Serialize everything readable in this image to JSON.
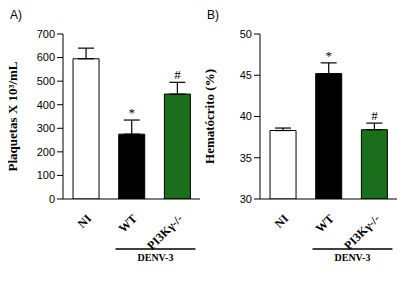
{
  "chart_data": [
    {
      "type": "bar",
      "title": "A)",
      "y_label": "Plaquetas X 10³/mL",
      "categories": [
        "NI",
        "WT",
        "PI3Kγ-/-"
      ],
      "values": [
        595,
        275,
        445
      ],
      "errors": [
        45,
        60,
        50
      ],
      "colors": [
        "#ffffff",
        "#000000",
        "#1b6e1b"
      ],
      "ylim": [
        0,
        700
      ],
      "yticks": [
        0,
        100,
        200,
        300,
        400,
        500,
        600,
        700
      ],
      "significance": [
        null,
        "*",
        "#"
      ],
      "annotations": [
        {
          "text": "DENV-3",
          "categories": [
            "WT",
            "PI3Kγ-/-"
          ]
        }
      ]
    },
    {
      "type": "bar",
      "title": "B)",
      "y_label": "Hematócrito (%)",
      "categories": [
        "NI",
        "WT",
        "PI3Kγ-/-"
      ],
      "values": [
        38.3,
        45.2,
        38.4
      ],
      "errors": [
        0.3,
        1.3,
        0.8
      ],
      "colors": [
        "#ffffff",
        "#000000",
        "#1b6e1b"
      ],
      "ylim": [
        30,
        50
      ],
      "yticks": [
        30,
        35,
        40,
        45,
        50
      ],
      "significance": [
        null,
        "*",
        "#"
      ],
      "annotations": [
        {
          "text": "DENV-3",
          "categories": [
            "WT",
            "PI3Kγ-/-"
          ]
        }
      ]
    }
  ]
}
